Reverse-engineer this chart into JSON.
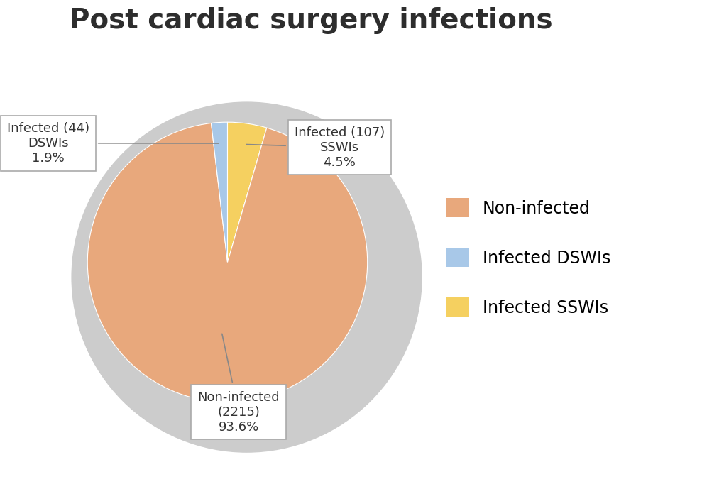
{
  "title": "Post cardiac surgery infections",
  "slices": [
    2215,
    44,
    107
  ],
  "labels": [
    "Non-infected",
    "Infected DSWIs",
    "Infected SSWIs"
  ],
  "colors": [
    "#E8A87C",
    "#A8C8E8",
    "#F5D060"
  ],
  "background_color": "#ffffff",
  "title_fontsize": 28,
  "legend_fontsize": 17,
  "annotation_fontsize": 13,
  "annot_noninfected": "Non-infected\n(2215)\n93.6%",
  "annot_dswi": "Infected (44)\nDSWIs\n1.9%",
  "annot_sswi": "Infected (107)\nSSWIs\n4.5%"
}
